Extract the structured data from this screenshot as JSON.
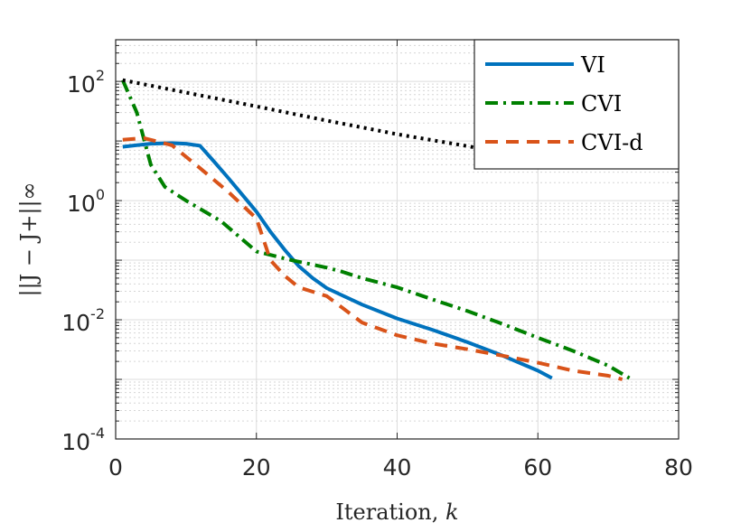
{
  "chart_data": {
    "type": "line",
    "title": "",
    "xlabel": "Iteration, k",
    "xlabel_prefix": "Iteration, ",
    "xlabel_var": "k",
    "ylabel": "||J − J+||∞",
    "xlim": [
      0,
      80
    ],
    "ylim": [
      0.0001,
      500
    ],
    "yscale": "log",
    "grid": true,
    "minor_grid": true,
    "legend_position": "top-right",
    "x_ticks": [
      0,
      20,
      40,
      60,
      80
    ],
    "y_ticks": [
      {
        "value": 0.0001,
        "base": "10",
        "exp": "-4"
      },
      {
        "value": 0.01,
        "base": "10",
        "exp": "-2"
      },
      {
        "value": 1,
        "base": "10",
        "exp": "0"
      },
      {
        "value": 100,
        "base": "10",
        "exp": "2"
      }
    ],
    "series": [
      {
        "name": "VI",
        "color": "#0072BD",
        "dash": "solid",
        "x": [
          1,
          3,
          5,
          8,
          10,
          12,
          14,
          16,
          18,
          20,
          22,
          24,
          26,
          28,
          30,
          35,
          40,
          45,
          50,
          55,
          60,
          62
        ],
        "y": [
          8,
          8.5,
          9,
          9.2,
          9,
          8.3,
          4.5,
          2.4,
          1.25,
          0.65,
          0.3,
          0.15,
          0.08,
          0.05,
          0.034,
          0.018,
          0.0105,
          0.0068,
          0.0042,
          0.0025,
          0.0014,
          0.00105
        ]
      },
      {
        "name": "CVI",
        "color": "#008000",
        "dash": "dashdot",
        "x": [
          1,
          3,
          5,
          7,
          10,
          15,
          20,
          25,
          30,
          32,
          35,
          40,
          45,
          50,
          55,
          60,
          65,
          70,
          73
        ],
        "y": [
          105,
          30,
          4,
          1.7,
          1,
          0.45,
          0.14,
          0.1,
          0.075,
          0.065,
          0.05,
          0.035,
          0.022,
          0.014,
          0.0085,
          0.005,
          0.003,
          0.0017,
          0.00105
        ]
      },
      {
        "name": "CVI-d",
        "color": "#D95319",
        "dash": "dashed",
        "x": [
          1,
          4,
          8,
          12,
          16,
          20,
          22,
          24,
          26,
          30,
          35,
          40,
          45,
          50,
          55,
          60,
          65,
          70,
          72
        ],
        "y": [
          10.5,
          11.2,
          8.5,
          3.5,
          1.4,
          0.5,
          0.1,
          0.055,
          0.035,
          0.025,
          0.009,
          0.0055,
          0.004,
          0.0032,
          0.0025,
          0.0019,
          0.0014,
          0.00115,
          0.001
        ]
      },
      {
        "color": "#000000",
        "dash": "dotted",
        "x": [
          1,
          10,
          20,
          30,
          40,
          50,
          51
        ],
        "y": [
          105,
          65,
          38,
          22,
          13,
          8.2,
          7.8
        ]
      }
    ]
  }
}
